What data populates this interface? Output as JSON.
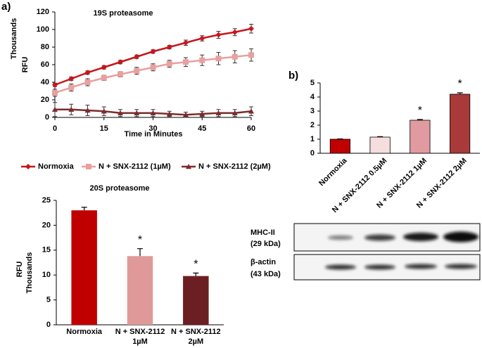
{
  "panels": [
    "a)",
    "b)"
  ],
  "chart_data": [
    {
      "type": "line",
      "title": "19S proteasome",
      "ylabel": "RFU",
      "yunit": "Thousands",
      "xlabel": "Time in Minutes",
      "x": [
        0,
        5,
        10,
        15,
        20,
        25,
        30,
        35,
        40,
        45,
        50,
        55,
        60
      ],
      "xlim": [
        0,
        60
      ],
      "xticks": [
        0,
        15,
        30,
        45,
        60
      ],
      "ylim": [
        0,
        120
      ],
      "yticks": [
        0,
        20,
        40,
        60,
        80,
        100,
        120
      ],
      "series": [
        {
          "name": "Normoxia",
          "color": "#c8161d",
          "marker": "diamond",
          "values": [
            37,
            44,
            51,
            57,
            63,
            69,
            75,
            80,
            85,
            90,
            94,
            97,
            101
          ],
          "errors": [
            2,
            2,
            2,
            2,
            2,
            2,
            2,
            2,
            3,
            3,
            4,
            4,
            5
          ]
        },
        {
          "name": "N + SNX-2112 (1µM)",
          "color": "#e8a0a0",
          "marker": "square",
          "values": [
            28,
            34,
            40,
            45,
            49,
            53,
            57,
            61,
            63,
            65,
            67,
            69,
            71
          ],
          "errors": [
            4,
            4,
            4,
            3,
            3,
            4,
            4,
            4,
            5,
            6,
            7,
            7,
            7
          ]
        },
        {
          "name": "N + SNX-2112 (2µM)",
          "color": "#7b2c2e",
          "marker": "triangle",
          "values": [
            9,
            9,
            8,
            7,
            5,
            5,
            5,
            4,
            3,
            4,
            5,
            5,
            7
          ],
          "errors": [
            8,
            6,
            6,
            5,
            4,
            4,
            4,
            3,
            3,
            3,
            4,
            4,
            5
          ]
        }
      ]
    },
    {
      "type": "bar",
      "title": "20S proteasome",
      "ylabel": "RFU",
      "yunit": "Thousands",
      "categories": [
        [
          "Normoxia"
        ],
        [
          "N + SNX-2112",
          "1µM"
        ],
        [
          "N + SNX-2112",
          "2µM"
        ]
      ],
      "values": [
        23,
        13.8,
        9.8
      ],
      "errors": [
        0.6,
        1.5,
        0.6
      ],
      "colors": [
        "#c00000",
        "#e09999",
        "#6b1f23"
      ],
      "significance": [
        null,
        "*",
        "*"
      ],
      "ylim": [
        0,
        25
      ],
      "yticks": [
        0,
        5,
        10,
        15,
        20,
        25
      ]
    },
    {
      "type": "bar",
      "categories": [
        [
          "Normoxia"
        ],
        [
          "N + SNX-2112 0.5µM"
        ],
        [
          "N + SNX-2112 1µM"
        ],
        [
          "N + SNX-2112 2µM"
        ]
      ],
      "values": [
        1,
        1.15,
        2.35,
        4.2
      ],
      "errors": [
        0.02,
        0.03,
        0.05,
        0.1
      ],
      "colors": [
        "#c00000",
        "#f6dede",
        "#e09aa0",
        "#a83a3a"
      ],
      "significance": [
        null,
        null,
        "*",
        "*"
      ],
      "ylim": [
        0,
        5
      ],
      "yticks": [
        0,
        1,
        2,
        3,
        4,
        5
      ]
    }
  ],
  "blot": {
    "rows": [
      {
        "label": [
          "MHC-II",
          "(29 kDa)"
        ]
      },
      {
        "label": [
          "β-actin",
          "(43 kDa)"
        ]
      }
    ]
  }
}
